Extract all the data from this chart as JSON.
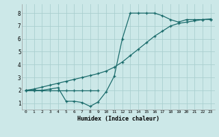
{
  "xlabel": "Humidex (Indice chaleur)",
  "background_color": "#cce8e8",
  "grid_color": "#aacfcf",
  "line_color": "#1a6b6b",
  "xlim": [
    -0.5,
    23.5
  ],
  "ylim": [
    0.5,
    8.7
  ],
  "xticks": [
    0,
    1,
    2,
    3,
    4,
    5,
    6,
    7,
    8,
    9,
    10,
    11,
    12,
    13,
    14,
    15,
    16,
    17,
    18,
    19,
    20,
    21,
    22,
    23
  ],
  "yticks": [
    1,
    2,
    3,
    4,
    5,
    6,
    7,
    8
  ],
  "line1_x": [
    0,
    1,
    2,
    3,
    4,
    5,
    6,
    7,
    8,
    9,
    10,
    11,
    12,
    13,
    14,
    15,
    16,
    17,
    18,
    19,
    20,
    21,
    22,
    23
  ],
  "line1_y": [
    2.0,
    2.0,
    2.0,
    2.1,
    2.2,
    1.15,
    1.15,
    1.05,
    0.75,
    1.1,
    1.9,
    3.1,
    6.0,
    8.0,
    8.0,
    8.0,
    8.0,
    7.8,
    7.5,
    7.3,
    7.5,
    7.5,
    7.5,
    7.5
  ],
  "line2_x": [
    0,
    1,
    2,
    3,
    4,
    5,
    6,
    7,
    8,
    9
  ],
  "line2_y": [
    2.0,
    2.0,
    2.0,
    2.0,
    2.0,
    2.0,
    2.0,
    2.0,
    2.0,
    2.0
  ],
  "line3_x": [
    0,
    1,
    2,
    3,
    4,
    5,
    6,
    7,
    8,
    9,
    10,
    11,
    12,
    13,
    14,
    15,
    16,
    17,
    18,
    19,
    20,
    21,
    22,
    23
  ],
  "line3_y": [
    2.0,
    2.1,
    2.25,
    2.4,
    2.55,
    2.7,
    2.85,
    3.0,
    3.15,
    3.3,
    3.5,
    3.8,
    4.2,
    4.7,
    5.2,
    5.7,
    6.2,
    6.6,
    7.0,
    7.2,
    7.3,
    7.4,
    7.5,
    7.55
  ]
}
